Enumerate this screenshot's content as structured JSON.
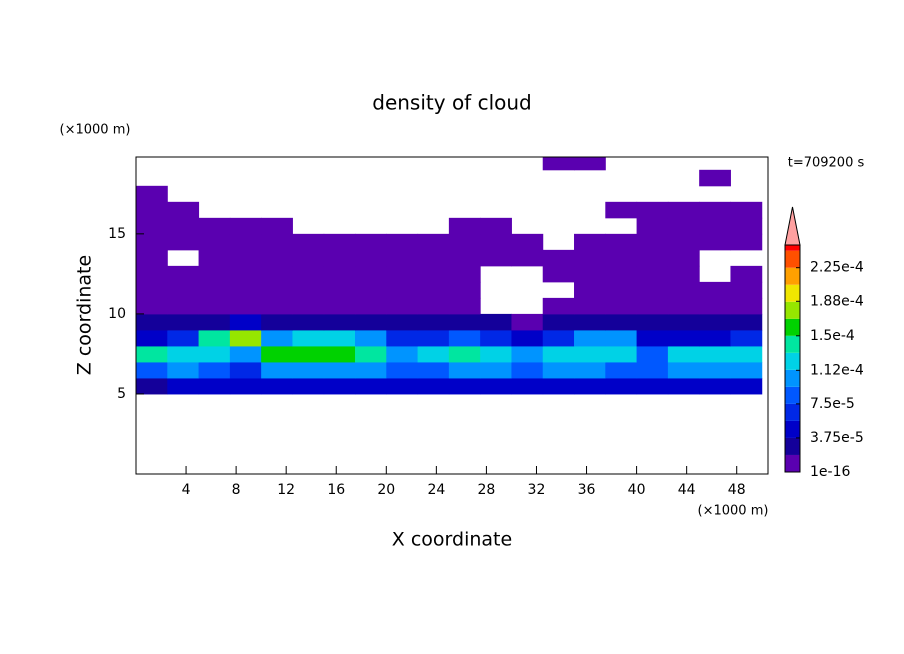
{
  "chart_data": {
    "type": "contour",
    "title": "density of cloud",
    "x_label": "X coordinate",
    "y_label": "Z coordinate",
    "x_unit": "(×1000 m)",
    "y_unit": "(×1000 m)",
    "time_label": "t=709200 s",
    "xlim": [
      0,
      50.5
    ],
    "ylim": [
      0,
      19.8
    ],
    "xticks": [
      4,
      8,
      12,
      16,
      20,
      24,
      28,
      32,
      36,
      40,
      44,
      48
    ],
    "yticks": [
      5,
      10,
      15
    ],
    "x": [
      1.25,
      3.75,
      6.25,
      8.75,
      11.25,
      13.75,
      16.25,
      18.75,
      21.25,
      23.75,
      26.25,
      28.75,
      31.25,
      33.75,
      36.25,
      38.75,
      41.25,
      43.75,
      46.25,
      48.75
    ],
    "y": [
      0.5,
      1.5,
      2.5,
      3.5,
      4.5,
      5.5,
      6.5,
      7.5,
      8.5,
      9.5,
      10.5,
      11.5,
      12.5,
      13.5,
      14.5,
      15.5,
      16.5,
      17.5,
      18.5,
      19.5
    ],
    "values": [
      [
        null,
        null,
        null,
        null,
        null,
        null,
        null,
        null,
        null,
        null,
        null,
        null,
        null,
        null,
        null,
        null,
        null,
        null,
        null,
        null
      ],
      [
        null,
        null,
        null,
        null,
        null,
        null,
        null,
        null,
        null,
        null,
        null,
        null,
        null,
        null,
        null,
        null,
        null,
        null,
        null,
        null
      ],
      [
        null,
        null,
        null,
        null,
        null,
        null,
        null,
        null,
        null,
        null,
        null,
        null,
        null,
        null,
        null,
        null,
        null,
        null,
        null,
        null
      ],
      [
        null,
        null,
        null,
        null,
        null,
        null,
        null,
        null,
        null,
        null,
        null,
        null,
        null,
        null,
        null,
        null,
        null,
        null,
        null,
        null
      ],
      [
        null,
        null,
        null,
        null,
        null,
        null,
        null,
        null,
        null,
        null,
        null,
        null,
        null,
        null,
        null,
        null,
        null,
        null,
        null,
        null
      ],
      [
        3e-05,
        5e-05,
        5e-05,
        5e-05,
        5e-05,
        5e-05,
        5e-05,
        5e-05,
        5e-05,
        5e-05,
        5e-05,
        5e-05,
        5e-05,
        5e-05,
        5e-05,
        5e-05,
        5e-05,
        5e-05,
        5e-05,
        5e-05
      ],
      [
        9e-05,
        0.0001,
        9e-05,
        7e-05,
        0.0001,
        0.0001,
        0.0001,
        0.0001,
        8e-05,
        9e-05,
        0.0001,
        0.0001,
        8e-05,
        0.0001,
        0.0001,
        9e-05,
        8e-05,
        0.0001,
        0.0001,
        0.0001
      ],
      [
        0.00014,
        0.00013,
        0.00012,
        0.0001,
        0.00015,
        0.00016,
        0.00016,
        0.00014,
        0.00011,
        0.00013,
        0.00014,
        0.00013,
        0.0001,
        0.00012,
        0.00012,
        0.00013,
        9e-05,
        0.00013,
        0.00012,
        0.00013
      ],
      [
        4e-05,
        6e-05,
        0.00014,
        0.00017,
        0.00011,
        0.00012,
        0.00013,
        0.00011,
        6e-05,
        7e-05,
        8e-05,
        6e-05,
        5e-05,
        6e-05,
        0.0001,
        0.00011,
        5e-05,
        4e-05,
        5e-05,
        6e-05
      ],
      [
        2e-05,
        2e-05,
        3e-05,
        4e-05,
        3e-05,
        3e-05,
        2e-05,
        3e-05,
        2e-05,
        2e-05,
        3e-05,
        2e-05,
        1e-05,
        2e-05,
        3e-05,
        3e-05,
        2e-05,
        2e-05,
        2e-05,
        2e-05
      ],
      [
        1e-05,
        1e-05,
        1e-05,
        1e-05,
        1e-05,
        1e-05,
        1e-05,
        1e-05,
        1e-05,
        1e-05,
        1e-05,
        null,
        null,
        1e-05,
        1e-05,
        1e-05,
        1e-05,
        1e-05,
        1e-05,
        1e-05
      ],
      [
        1e-05,
        1e-05,
        1e-05,
        1e-05,
        1e-05,
        1e-05,
        1e-05,
        1e-05,
        1e-05,
        1e-05,
        1e-05,
        null,
        null,
        null,
        1e-05,
        1e-05,
        1e-05,
        1e-05,
        1e-05,
        1e-05
      ],
      [
        1e-05,
        1e-05,
        1e-05,
        1e-05,
        1e-05,
        1e-05,
        1e-05,
        1e-05,
        1e-05,
        1e-05,
        1e-05,
        null,
        null,
        1e-05,
        1e-05,
        1e-05,
        1e-05,
        1e-05,
        null,
        1e-05
      ],
      [
        1e-05,
        null,
        1e-05,
        1e-05,
        1e-05,
        1e-05,
        1e-05,
        1e-05,
        1e-05,
        1e-05,
        1e-05,
        1e-05,
        1e-05,
        1e-05,
        1e-05,
        1e-05,
        1e-05,
        1e-05,
        null,
        null
      ],
      [
        1e-05,
        1e-05,
        1e-05,
        1e-05,
        1e-05,
        1e-05,
        1e-05,
        1e-05,
        1e-05,
        1e-05,
        1e-05,
        1e-05,
        1e-05,
        null,
        1e-05,
        1e-05,
        1e-05,
        1e-05,
        1e-05,
        1e-05
      ],
      [
        1e-05,
        1e-05,
        1e-05,
        1e-05,
        1e-05,
        null,
        null,
        null,
        null,
        null,
        1e-05,
        1e-05,
        null,
        null,
        null,
        null,
        1e-05,
        1e-05,
        1e-05,
        1e-05
      ],
      [
        1e-05,
        1e-05,
        null,
        null,
        null,
        null,
        null,
        null,
        null,
        null,
        null,
        null,
        null,
        null,
        null,
        1e-05,
        1e-05,
        1e-05,
        1e-05,
        1e-05
      ],
      [
        1e-05,
        null,
        null,
        null,
        null,
        null,
        null,
        null,
        null,
        null,
        null,
        null,
        null,
        null,
        null,
        null,
        null,
        null,
        null,
        null
      ],
      [
        null,
        null,
        null,
        null,
        null,
        null,
        null,
        null,
        null,
        null,
        null,
        null,
        null,
        null,
        null,
        null,
        null,
        null,
        1e-05,
        null
      ],
      [
        null,
        null,
        null,
        null,
        null,
        null,
        null,
        null,
        null,
        null,
        null,
        null,
        null,
        1e-05,
        1e-05,
        null,
        null,
        null,
        null,
        null
      ]
    ],
    "levels": [
      1e-16,
      1.875e-05,
      3.75e-05,
      5.625e-05,
      7.5e-05,
      9.375e-05,
      0.0001125,
      0.00013125,
      0.00015,
      0.00016875,
      0.0001875,
      0.00020625,
      0.000225,
      0.00024375
    ],
    "level_colors": [
      "#5a00b0",
      "#14009a",
      "#0000c8",
      "#0028e6",
      "#0058ff",
      "#0094ff",
      "#00d2e6",
      "#00e6a0",
      "#00d200",
      "#96e600",
      "#f0e600",
      "#ffa000",
      "#ff5000",
      "#ff0000"
    ],
    "extend_color": "#ffa0a0",
    "colorbar_lim": [
      1e-16,
      0.00025
    ],
    "colorbar_ticks": [
      1e-16,
      {
        "value": 3.75e-05,
        "label": "3.75e-5"
      },
      {
        "value": 7.5e-05,
        "label": "7.5e-5"
      },
      {
        "value": 0.000112,
        "label": "1.12e-4"
      },
      {
        "value": 0.00015,
        "label": "1.5e-4"
      },
      {
        "value": 0.000188,
        "label": "1.88e-4"
      },
      {
        "value": 0.000225,
        "label": "2.25e-4"
      }
    ]
  }
}
